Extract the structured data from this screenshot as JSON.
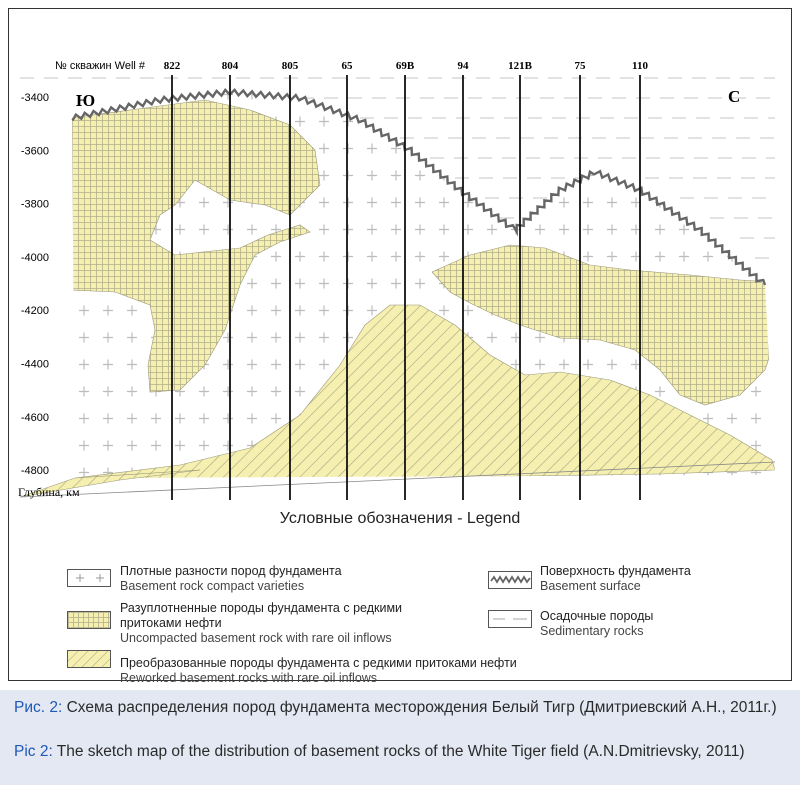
{
  "diagram": {
    "header_label": "№ скважин Well #",
    "wells": [
      "822",
      "804",
      "805",
      "65",
      "69B",
      "94",
      "121B",
      "75",
      "110"
    ],
    "direction_left": "Ю",
    "direction_right": "С",
    "depth_axis_label": "Глубина, км",
    "depth_ticks": [
      "-3400",
      "-3600",
      "-3800",
      "-4000",
      "-4200",
      "-4400",
      "-4600",
      "-4800"
    ],
    "colors": {
      "fill": "#f5efb0",
      "hatch": "#a8a482",
      "grid": "#c9c9c9",
      "surface": "#666666"
    }
  },
  "legend": {
    "title": "Условные обозначения - Legend",
    "items": [
      {
        "ru": "Плотные разности пород фундамента",
        "en": "Basement rock compact varieties"
      },
      {
        "ru": "Разуплотненные породы фундамента с редкими",
        "ru2": "притоками нефти",
        "en": "Uncompacted basement rock with rare oil inflows"
      },
      {
        "ru": "Преобразованные породы фундамента с редкими притоками нефти",
        "en": "Reworked basement rocks with rare oil inflows"
      },
      {
        "ru": "Поверхность фундамента",
        "en": "Basement surface"
      },
      {
        "ru": "Осадочные породы",
        "en": "Sedimentary rocks"
      }
    ]
  },
  "caption": {
    "ru_label": "Рис. 2:",
    "ru_text": " Схема распределения пород фундамента месторождения Белый Тигр (Дмитриевский А.Н., 2011г.)",
    "en_label": "Pic 2:",
    "en_text": " The sketch map of the distribution of basement rocks of the White Tiger field (A.N.Dmitrievsky, 2011)"
  }
}
